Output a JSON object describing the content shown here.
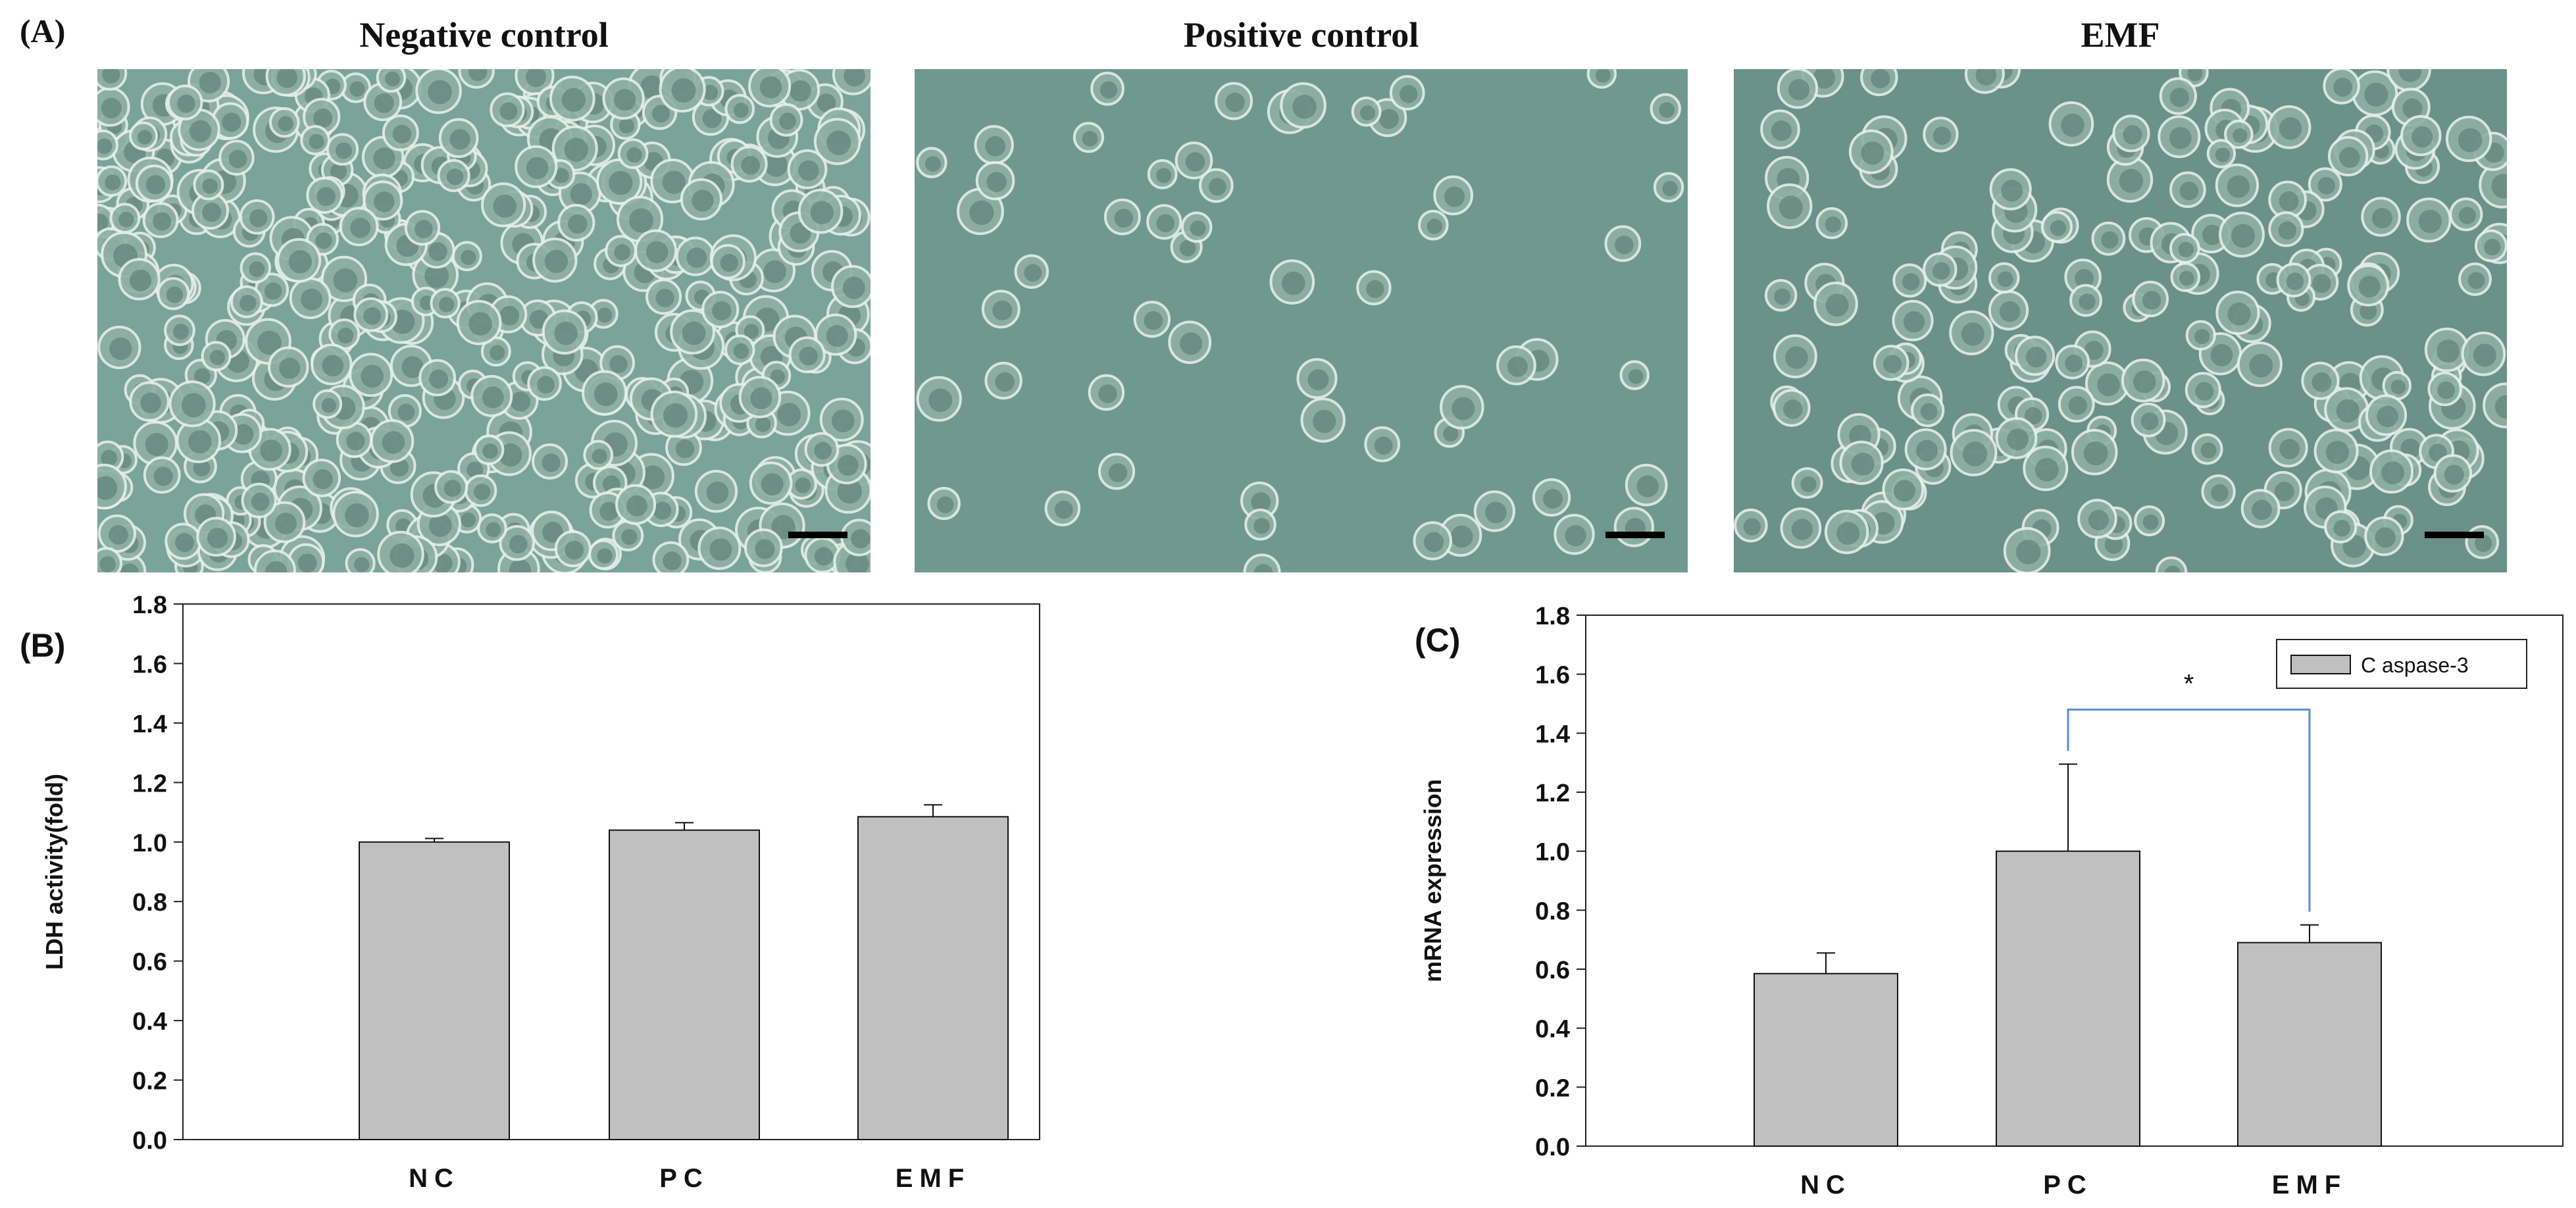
{
  "panelA": {
    "label": "(A)",
    "images": [
      {
        "title": "Negative control",
        "density": "high",
        "tint": "#7aa39a"
      },
      {
        "title": "Positive control",
        "density": "low",
        "tint": "#6f9990"
      },
      {
        "title": "EMF",
        "density": "medium",
        "tint": "#6a918a"
      }
    ]
  },
  "chart_data": [
    {
      "type": "bar",
      "panel_label": "(B)",
      "categories": [
        "NC",
        "PC",
        "EMF"
      ],
      "values": [
        1.0,
        1.04,
        1.085
      ],
      "errors": [
        0.012,
        0.025,
        0.04
      ],
      "title": "",
      "xlabel": "",
      "ylabel": "LDH activity(fold)",
      "ylim": [
        0,
        1.8
      ],
      "yticks": [
        "0.0",
        "0.2",
        "0.4",
        "0.6",
        "0.8",
        "1.0",
        "1.2",
        "1.4",
        "1.6",
        "1.8"
      ],
      "grid": false,
      "bar_color": "#c0c0c0"
    },
    {
      "type": "bar",
      "panel_label": "(C)",
      "categories": [
        "NC",
        "PC",
        "EMF"
      ],
      "series": [
        {
          "name": "C aspase-3",
          "values": [
            0.585,
            1.0,
            0.69
          ],
          "errors": [
            0.07,
            0.295,
            0.06
          ]
        }
      ],
      "title": "",
      "xlabel": "",
      "ylabel": "mRNA expression",
      "ylim": [
        0,
        1.8
      ],
      "yticks": [
        "0.0",
        "0.2",
        "0.4",
        "0.6",
        "0.8",
        "1.0",
        "1.2",
        "1.4",
        "1.6",
        "1.8"
      ],
      "grid": false,
      "legend": "top-right",
      "bar_color": "#c0c0c0",
      "annotation": {
        "text": "*",
        "from": "PC",
        "to": "EMF",
        "color": "#5b8fd6"
      }
    }
  ]
}
